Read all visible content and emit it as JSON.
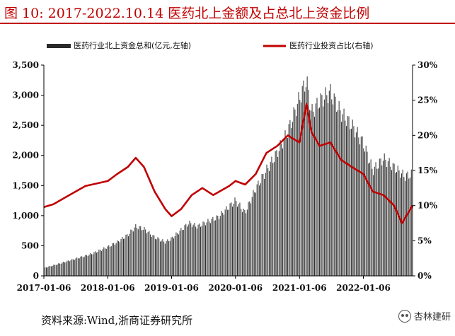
{
  "figure": {
    "title": "图 10:   2017-2022.10.14 医药北上金额及占总北上资金比例",
    "source": "资料来源:Wind,浙商证券研究所",
    "watermark": "杏林建研",
    "watermark_icon": "wechat-icon"
  },
  "colors": {
    "title": "#c00000",
    "bars": "#2b2b2b",
    "line": "#c00000",
    "axis": "#000000"
  },
  "chart_data": {
    "type": "bar",
    "grid": false,
    "legend_position": "top",
    "legend": [
      {
        "label": "医药行业北上资金总和(亿元,左轴)",
        "kind": "bar"
      },
      {
        "label": "医药行业投资占比(右轴)",
        "kind": "line"
      }
    ],
    "x_ticks": [
      "2017-01-06",
      "2018-01-06",
      "2019-01-06",
      "2020-01-06",
      "2021-01-06",
      "2022-01-06"
    ],
    "x_range": [
      "2017-01-06",
      "2022-10-14"
    ],
    "y_left": {
      "min": 0,
      "max": 3500,
      "ticks": [
        "0",
        "500",
        "1,000",
        "1,500",
        "2,000",
        "2,500",
        "3,000",
        "3,500"
      ]
    },
    "y_right": {
      "min": 0,
      "max": 30,
      "ticks": [
        "0%",
        "5%",
        "10%",
        "15%",
        "20%",
        "25%",
        "30%"
      ]
    },
    "series": [
      {
        "name": "医药行业北上资金总和(亿元,左轴)",
        "axis": "left",
        "type": "bar",
        "points": [
          [
            "2017-01-06",
            130
          ],
          [
            "2017-04-01",
            200
          ],
          [
            "2017-07-01",
            280
          ],
          [
            "2017-10-01",
            360
          ],
          [
            "2018-01-06",
            480
          ],
          [
            "2018-03-01",
            560
          ],
          [
            "2018-05-01",
            680
          ],
          [
            "2018-06-15",
            820
          ],
          [
            "2018-08-01",
            780
          ],
          [
            "2018-10-01",
            640
          ],
          [
            "2018-12-01",
            560
          ],
          [
            "2019-01-06",
            620
          ],
          [
            "2019-03-01",
            760
          ],
          [
            "2019-04-15",
            880
          ],
          [
            "2019-06-01",
            820
          ],
          [
            "2019-08-01",
            900
          ],
          [
            "2019-10-01",
            980
          ],
          [
            "2019-12-01",
            1150
          ],
          [
            "2020-01-06",
            1250
          ],
          [
            "2020-03-01",
            1050
          ],
          [
            "2020-05-01",
            1450
          ],
          [
            "2020-07-01",
            1750
          ],
          [
            "2020-09-01",
            2050
          ],
          [
            "2020-11-01",
            2400
          ],
          [
            "2021-01-06",
            2950
          ],
          [
            "2021-02-15",
            3250
          ],
          [
            "2021-03-15",
            2700
          ],
          [
            "2021-05-01",
            2900
          ],
          [
            "2021-07-01",
            3050
          ],
          [
            "2021-09-01",
            2700
          ],
          [
            "2021-11-01",
            2500
          ],
          [
            "2022-01-06",
            2200
          ],
          [
            "2022-03-01",
            1750
          ],
          [
            "2022-05-01",
            1950
          ],
          [
            "2022-07-01",
            1800
          ],
          [
            "2022-09-01",
            1650
          ],
          [
            "2022-10-14",
            1700
          ]
        ]
      },
      {
        "name": "医药行业投资占比(右轴)",
        "axis": "right",
        "type": "line",
        "points": [
          [
            "2017-01-06",
            9.8
          ],
          [
            "2017-03-01",
            10.2
          ],
          [
            "2017-06-01",
            11.5
          ],
          [
            "2017-09-01",
            12.8
          ],
          [
            "2018-01-06",
            13.5
          ],
          [
            "2018-03-01",
            14.5
          ],
          [
            "2018-05-01",
            15.5
          ],
          [
            "2018-06-15",
            16.8
          ],
          [
            "2018-08-01",
            15.5
          ],
          [
            "2018-10-01",
            12.0
          ],
          [
            "2018-12-01",
            9.5
          ],
          [
            "2019-01-06",
            8.5
          ],
          [
            "2019-03-01",
            9.5
          ],
          [
            "2019-05-01",
            11.5
          ],
          [
            "2019-07-01",
            12.5
          ],
          [
            "2019-09-01",
            11.5
          ],
          [
            "2019-12-01",
            12.8
          ],
          [
            "2020-01-06",
            13.5
          ],
          [
            "2020-03-01",
            13.0
          ],
          [
            "2020-05-01",
            14.5
          ],
          [
            "2020-07-01",
            17.5
          ],
          [
            "2020-09-01",
            18.5
          ],
          [
            "2020-11-01",
            20.0
          ],
          [
            "2020-12-01",
            19.5
          ],
          [
            "2021-01-06",
            19.0
          ],
          [
            "2021-02-15",
            24.5
          ],
          [
            "2021-03-15",
            20.5
          ],
          [
            "2021-05-01",
            18.5
          ],
          [
            "2021-07-01",
            19.0
          ],
          [
            "2021-09-01",
            16.5
          ],
          [
            "2021-11-01",
            15.5
          ],
          [
            "2022-01-06",
            14.5
          ],
          [
            "2022-03-01",
            12.0
          ],
          [
            "2022-05-01",
            11.5
          ],
          [
            "2022-07-01",
            10.0
          ],
          [
            "2022-08-15",
            7.5
          ],
          [
            "2022-10-14",
            10.0
          ]
        ]
      }
    ]
  }
}
